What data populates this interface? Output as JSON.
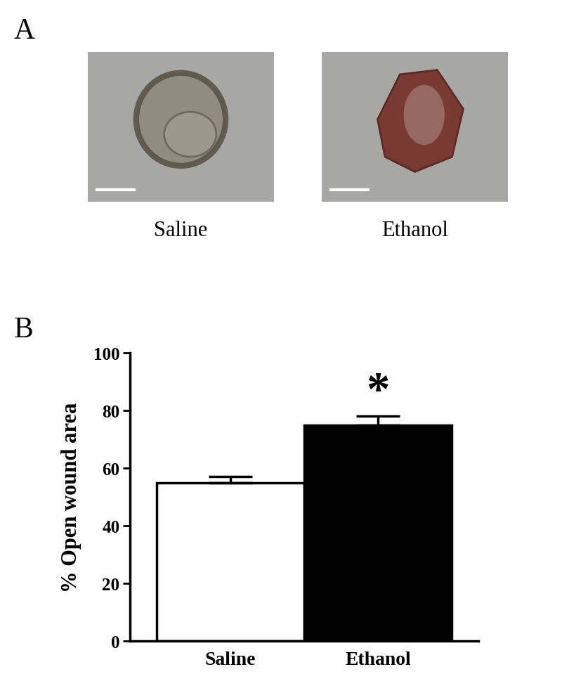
{
  "panel_labels": [
    "A",
    "B"
  ],
  "photos": {
    "labels": [
      "Saline",
      "Ethanol"
    ]
  },
  "chart_data": {
    "type": "bar",
    "y_label": "% Open wound area",
    "categories": [
      "Saline",
      "Ethanol"
    ],
    "values": [
      55,
      75
    ],
    "errors": [
      2,
      3
    ],
    "colors": [
      "#ffffff",
      "#000000"
    ],
    "ylim": [
      0,
      100
    ],
    "yticks": [
      0,
      20,
      40,
      60,
      80,
      100
    ],
    "grid": false,
    "annotations": [
      {
        "category": "Ethanol",
        "text": "*"
      }
    ]
  }
}
